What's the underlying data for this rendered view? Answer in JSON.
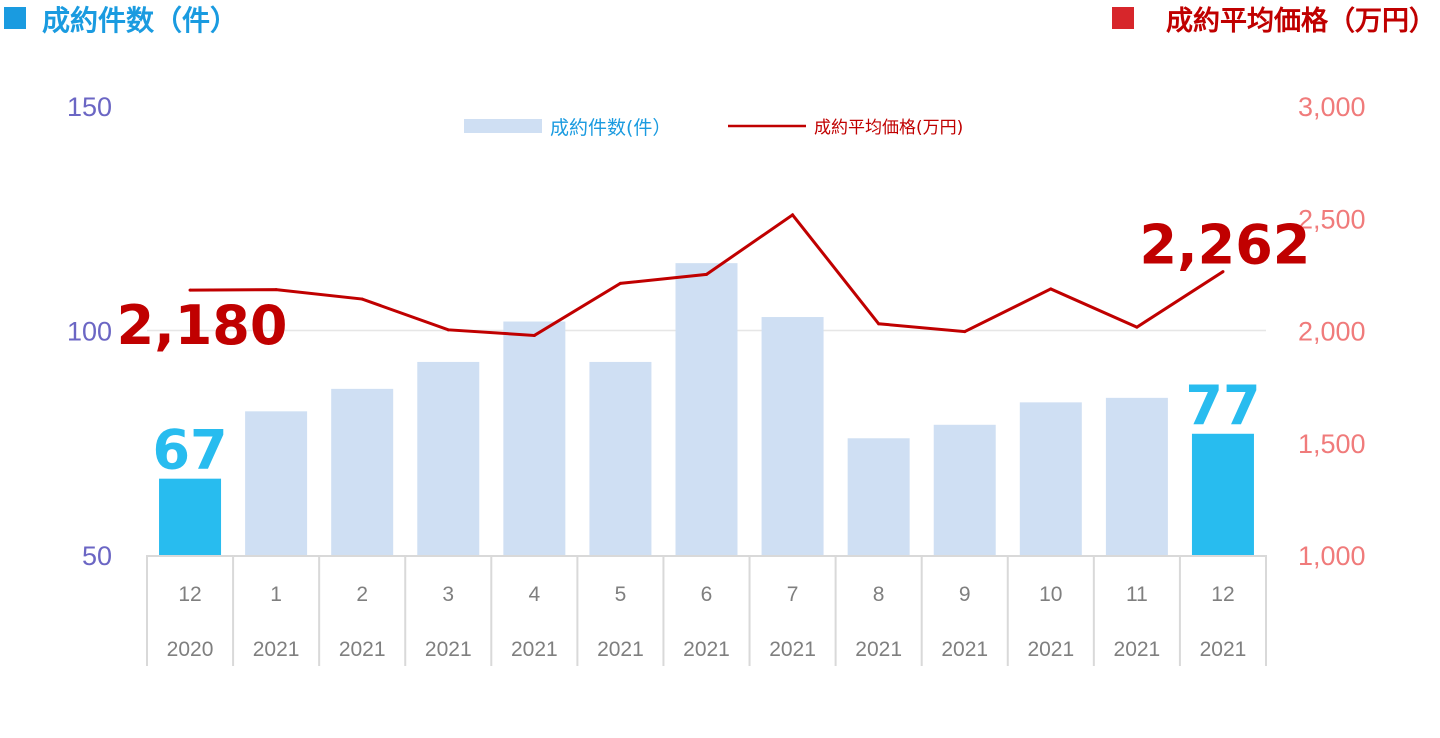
{
  "chart_data": {
    "type": "bar",
    "left_title": "成約件数（件）",
    "right_title": "成約平均価格（万円）",
    "categories": [
      {
        "month": "12",
        "year": "2020"
      },
      {
        "month": "1",
        "year": "2021"
      },
      {
        "month": "2",
        "year": "2021"
      },
      {
        "month": "3",
        "year": "2021"
      },
      {
        "month": "4",
        "year": "2021"
      },
      {
        "month": "5",
        "year": "2021"
      },
      {
        "month": "6",
        "year": "2021"
      },
      {
        "month": "7",
        "year": "2021"
      },
      {
        "month": "8",
        "year": "2021"
      },
      {
        "month": "9",
        "year": "2021"
      },
      {
        "month": "10",
        "year": "2021"
      },
      {
        "month": "11",
        "year": "2021"
      },
      {
        "month": "12",
        "year": "2021"
      }
    ],
    "series": [
      {
        "name": "成約件数(件）",
        "type": "bar",
        "axis": "left",
        "values": [
          67,
          82,
          87,
          93,
          102,
          93,
          115,
          103,
          76,
          79,
          84,
          85,
          77
        ],
        "highlight_indices": [
          0,
          12
        ]
      },
      {
        "name": "成約平均価格(万円)",
        "type": "line",
        "axis": "right",
        "values": [
          2180,
          2182,
          2140,
          2003,
          1978,
          2210,
          2250,
          2515,
          2030,
          1995,
          2185,
          2015,
          2262
        ]
      }
    ],
    "data_labels": [
      {
        "series": 0,
        "index": 0,
        "text": "67"
      },
      {
        "series": 0,
        "index": 12,
        "text": "77"
      },
      {
        "series": 1,
        "index": 0,
        "text": "2,180"
      },
      {
        "series": 1,
        "index": 12,
        "text": "2,262"
      }
    ],
    "y_left": {
      "range": [
        50,
        150
      ],
      "ticks": [
        "50",
        "100",
        "150"
      ]
    },
    "y_right": {
      "range": [
        1000,
        3000
      ],
      "ticks": [
        "1,000",
        "1,500",
        "2,000",
        "2,500",
        "3,000"
      ]
    },
    "grid": true,
    "legend_placement": "top-center",
    "colors": {
      "bar": "#cfdff3",
      "bar_highlight": "#28bcef",
      "line": "#c00000",
      "left_title": "#1a9be0",
      "left_title_square": "#1a9be0",
      "right_title": "#c00000",
      "right_title_square": "#d7262b",
      "left_axis": "#6b66c4",
      "right_axis": "#f07b7b",
      "bar_label": "#28bcef",
      "line_label": "#c00000",
      "legend_bar_text": "#1a9be0",
      "legend_line_text": "#c00000",
      "category_text": "#7f7f7f",
      "table_line": "#d9d9d9",
      "grid": "#e6e6e6"
    }
  }
}
